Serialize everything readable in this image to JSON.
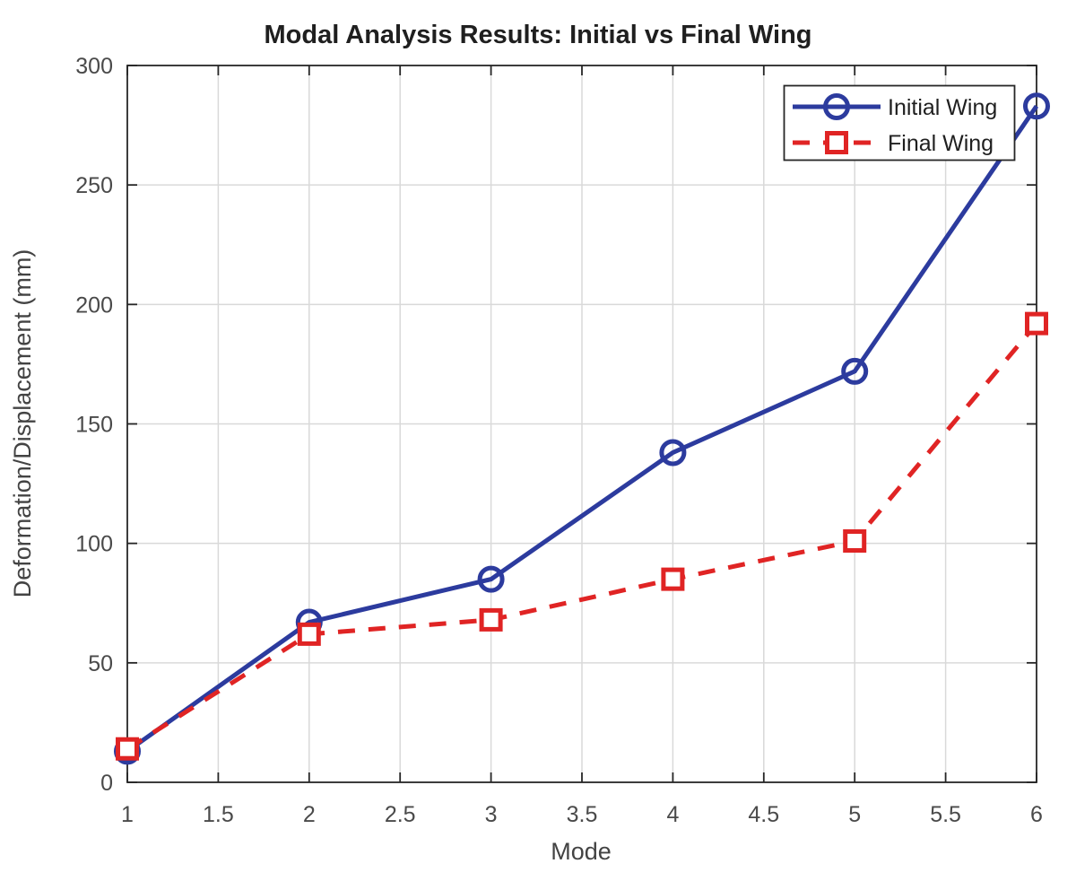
{
  "figure": {
    "background": "#ffffff"
  },
  "chart_data": {
    "type": "line",
    "title": "Modal Analysis Results: Initial vs Final Wing",
    "xlabel": "Mode",
    "ylabel": "Deformation/Displacement (mm)",
    "x": [
      1,
      2,
      3,
      4,
      5,
      6
    ],
    "series": [
      {
        "name": "Initial Wing",
        "values": [
          13,
          67,
          85,
          138,
          172,
          283
        ],
        "color": "#2c3b9e",
        "line_style": "solid",
        "marker": "circle"
      },
      {
        "name": "Final Wing",
        "values": [
          14,
          62,
          68,
          85,
          101,
          192
        ],
        "color": "#e02424",
        "line_style": "dashed",
        "marker": "square"
      }
    ],
    "xlim": [
      1,
      6
    ],
    "ylim": [
      0,
      300
    ],
    "x_ticks": [
      1,
      1.5,
      2,
      2.5,
      3,
      3.5,
      4,
      4.5,
      5,
      5.5,
      6
    ],
    "y_ticks": [
      0,
      50,
      100,
      150,
      200,
      250,
      300
    ],
    "grid": true,
    "legend": {
      "position": "top-right",
      "entries": [
        "Initial Wing",
        "Final Wing"
      ]
    },
    "style": {
      "axis_color": "#262626",
      "grid_color": "#d9d9d9",
      "tick_label_color": "#4a4a4a",
      "legend_border_color": "#262626",
      "background": "#ffffff",
      "marker_fill": "#ffffff"
    }
  }
}
